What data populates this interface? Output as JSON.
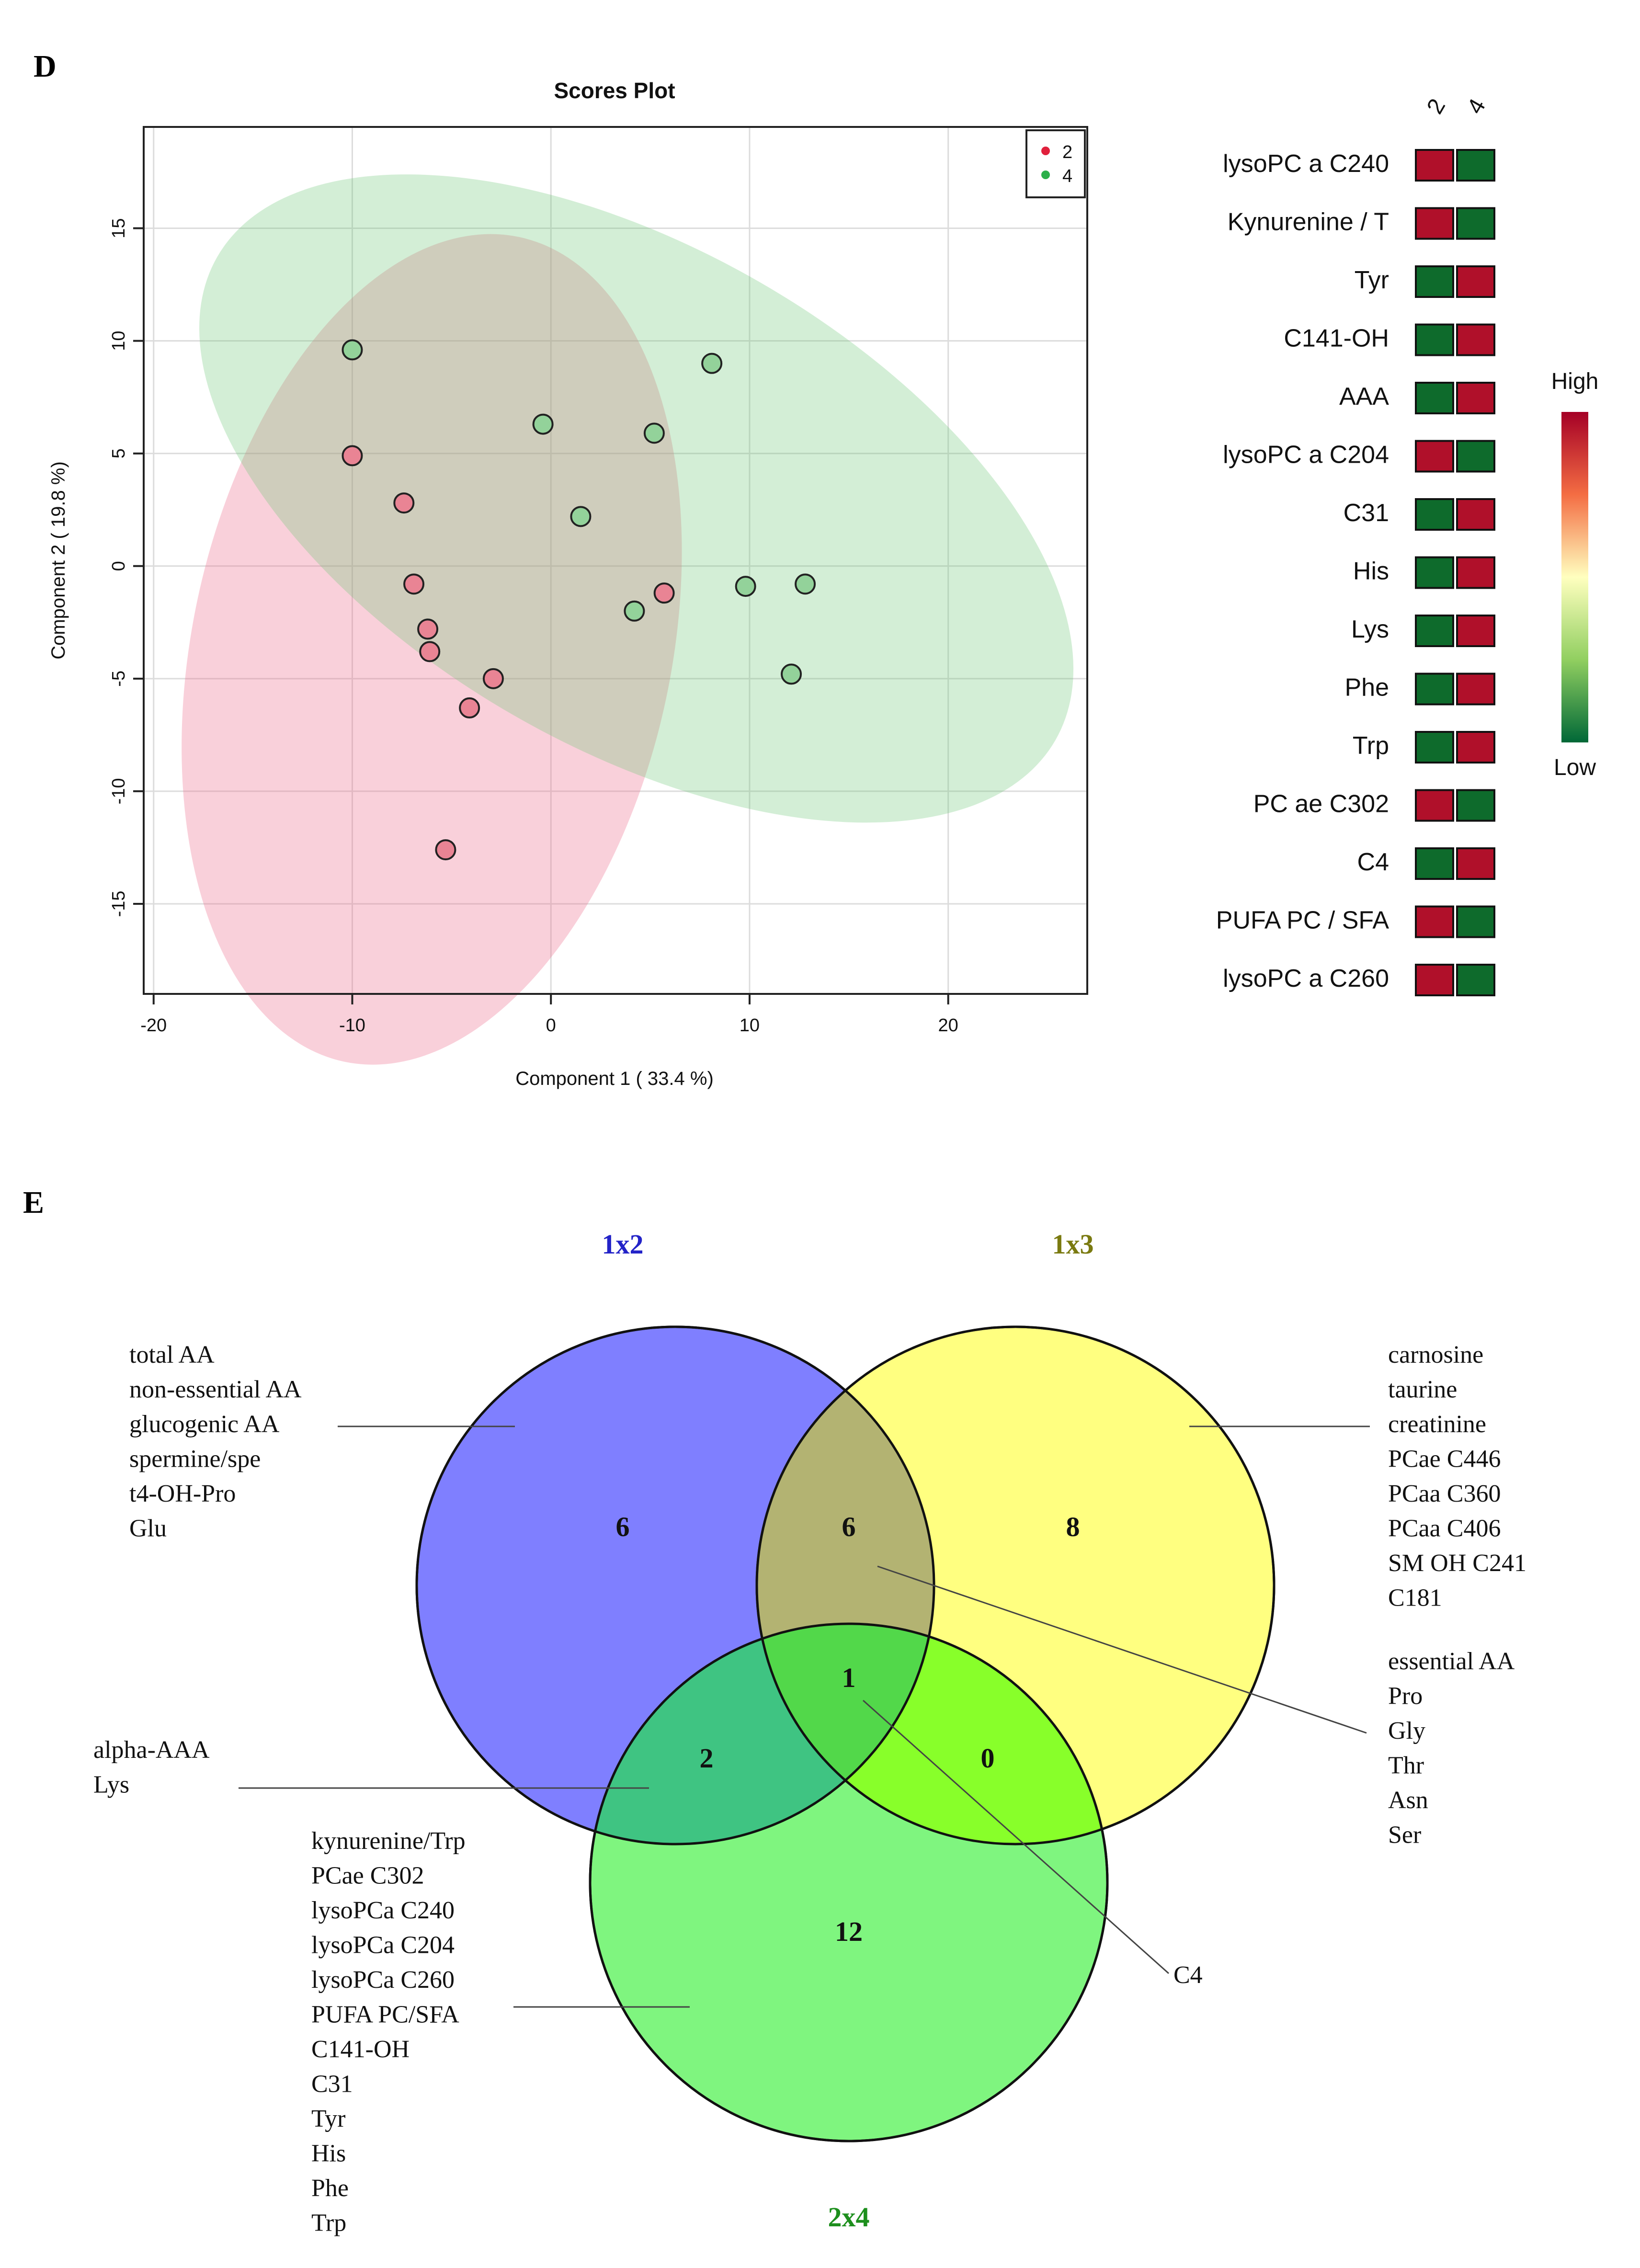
{
  "panel_d": {
    "letter": "D",
    "scores_plot": {
      "title": "Scores Plot",
      "xlabel": "Component 1 ( 33.4 %)",
      "ylabel": "Component 2 ( 19.8 %)",
      "legend": [
        {
          "label": "2",
          "color": "#e0203c"
        },
        {
          "label": "4",
          "color": "#2cb04a"
        }
      ]
    },
    "heatmap": {
      "columns": [
        "2",
        "4"
      ],
      "rows": [
        {
          "label": "lysoPC a C240",
          "cells": [
            "high",
            "low"
          ]
        },
        {
          "label": "Kynurenine / T",
          "cells": [
            "high",
            "low"
          ]
        },
        {
          "label": "Tyr",
          "cells": [
            "low",
            "high"
          ]
        },
        {
          "label": "C141-OH",
          "cells": [
            "low",
            "high"
          ]
        },
        {
          "label": "AAA",
          "cells": [
            "low",
            "high"
          ]
        },
        {
          "label": "lysoPC a C204",
          "cells": [
            "high",
            "low"
          ]
        },
        {
          "label": "C31",
          "cells": [
            "low",
            "high"
          ]
        },
        {
          "label": "His",
          "cells": [
            "low",
            "high"
          ]
        },
        {
          "label": "Lys",
          "cells": [
            "low",
            "high"
          ]
        },
        {
          "label": "Phe",
          "cells": [
            "low",
            "high"
          ]
        },
        {
          "label": "Trp",
          "cells": [
            "low",
            "high"
          ]
        },
        {
          "label": "PC ae C302",
          "cells": [
            "high",
            "low"
          ]
        },
        {
          "label": "C4",
          "cells": [
            "low",
            "high"
          ]
        },
        {
          "label": "PUFA PC / SFA",
          "cells": [
            "high",
            "low"
          ]
        },
        {
          "label": "lysoPC a C260",
          "cells": [
            "high",
            "low"
          ]
        }
      ],
      "colors": {
        "high": "#b0102a",
        "low": "#0e6b2c"
      },
      "scale": {
        "high_label": "High",
        "low_label": "Low"
      }
    }
  },
  "panel_e": {
    "letter": "E",
    "sets": [
      {
        "name": "1x2",
        "color": "#5050ff",
        "label_color": "#2323c8"
      },
      {
        "name": "1x3",
        "color": "#ffff80",
        "label_color": "#7a7a10"
      },
      {
        "name": "2x4",
        "color": "#7cf57c",
        "label_color": "#1d8f1d"
      }
    ],
    "counts": {
      "only_1x2": "6",
      "only_1x3": "8",
      "only_2x4": "12",
      "1x2_1x3": "6",
      "1x2_2x4": "2",
      "1x3_2x4": "0",
      "all": "1"
    },
    "annotations": {
      "only_1x2": [
        "total AA",
        "non-essential AA",
        "glucogenic AA",
        "spermine/spe",
        "t4-OH-Pro",
        "Glu"
      ],
      "only_1x3": [
        "carnosine",
        "taurine",
        "creatinine",
        "PCae C446",
        "PCaa C360",
        "PCaa C406",
        "SM OH C241",
        "C181"
      ],
      "1x2_1x3": [
        "essential AA",
        "Pro",
        "Gly",
        "Thr",
        "Asn",
        "Ser"
      ],
      "1x2_2x4": [
        "alpha-AAA",
        "Lys"
      ],
      "only_2x4": [
        "kynurenine/Trp",
        "PCae C302",
        "lysoPCa C240",
        "lysoPCa C204",
        "lysoPCa C260",
        "PUFA PC/SFA",
        "C141-OH",
        "C31",
        "Tyr",
        "His",
        "Phe",
        "Trp"
      ],
      "all": [
        "C4"
      ]
    }
  },
  "chart_data": {
    "type": "scatter",
    "title": "Scores Plot",
    "xlabel": "Component 1 ( 33.4 %)",
    "ylabel": "Component 2 ( 19.8 %)",
    "xlim": [
      -20.5,
      27
    ],
    "ylim": [
      -19,
      19.5
    ],
    "xticks": [
      -20,
      -10,
      0,
      10,
      20
    ],
    "yticks": [
      -15,
      -10,
      -5,
      0,
      5,
      10,
      15
    ],
    "grid": true,
    "legend_position": "top-right",
    "series": [
      {
        "name": "2",
        "color": "#e0203c",
        "points": [
          [
            -10,
            4.9
          ],
          [
            -7.4,
            2.8
          ],
          [
            -6.9,
            -0.8
          ],
          [
            -6.2,
            -2.8
          ],
          [
            -6.1,
            -3.8
          ],
          [
            -2.9,
            -5.0
          ],
          [
            -4.1,
            -6.3
          ],
          [
            -5.3,
            -12.6
          ],
          [
            5.7,
            -1.2
          ]
        ],
        "ellipse": {
          "center": [
            -6.0,
            -3.7
          ],
          "semi_axes": [
            11.8,
            17.0
          ],
          "angle_deg": 75
        }
      },
      {
        "name": "4",
        "color": "#2cb04a",
        "points": [
          [
            -10,
            9.6
          ],
          [
            -0.4,
            6.3
          ],
          [
            5.2,
            5.9
          ],
          [
            8.1,
            9.0
          ],
          [
            1.5,
            2.2
          ],
          [
            4.2,
            -2.0
          ],
          [
            9.8,
            -0.9
          ],
          [
            12.8,
            -0.8
          ],
          [
            12.1,
            -4.8
          ]
        ],
        "ellipse": {
          "center": [
            4.3,
            3.0
          ],
          "semi_axes": [
            19.0,
            10.5
          ],
          "angle_deg": -30
        }
      }
    ]
  }
}
